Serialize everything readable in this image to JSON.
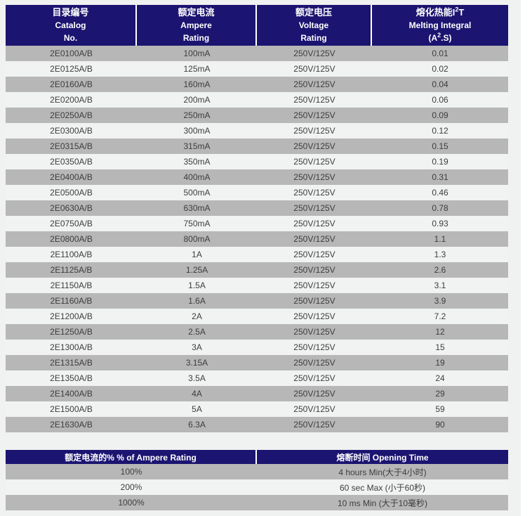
{
  "colors": {
    "header_bg": "#1b1470",
    "row_gray": "#b7b7b7",
    "row_light": "#f1f2f2",
    "text": "#3d3d3d",
    "panel_background": "#f0f1f1",
    "header_text": "#ffffff"
  },
  "table1": {
    "header": {
      "catalog": {
        "zh": "目录编号",
        "en1": "Catalog",
        "en2": "No."
      },
      "ampere": {
        "zh": "额定电流",
        "en1": "Ampere",
        "en2": "Rating"
      },
      "voltage": {
        "zh": "额定电压",
        "en1": "Voltage",
        "en2": "Rating"
      },
      "melting": {
        "zh_pre": "熔化热能I",
        "zh_sup": "2",
        "zh_post": "T",
        "en": "Melting Integral",
        "unit_pre": "(A",
        "unit_sup": "2",
        "unit_post": ".S)"
      }
    },
    "rows": [
      [
        "2E0100A/B",
        "100mA",
        "250V/125V",
        "0.01"
      ],
      [
        "2E0125A/B",
        "125mA",
        "250V/125V",
        "0.02"
      ],
      [
        "2E0160A/B",
        "160mA",
        "250V/125V",
        "0.04"
      ],
      [
        "2E0200A/B",
        "200mA",
        "250V/125V",
        "0.06"
      ],
      [
        "2E0250A/B",
        "250mA",
        "250V/125V",
        "0.09"
      ],
      [
        "2E0300A/B",
        "300mA",
        "250V/125V",
        "0.12"
      ],
      [
        "2E0315A/B",
        "315mA",
        "250V/125V",
        "0.15"
      ],
      [
        "2E0350A/B",
        "350mA",
        "250V/125V",
        "0.19"
      ],
      [
        "2E0400A/B",
        "400mA",
        "250V/125V",
        "0.31"
      ],
      [
        "2E0500A/B",
        "500mA",
        "250V/125V",
        "0.46"
      ],
      [
        "2E0630A/B",
        "630mA",
        "250V/125V",
        "0.78"
      ],
      [
        "2E0750A/B",
        "750mA",
        "250V/125V",
        "0.93"
      ],
      [
        "2E0800A/B",
        "800mA",
        "250V/125V",
        "1.1"
      ],
      [
        "2E1100A/B",
        "1A",
        "250V/125V",
        "1.3"
      ],
      [
        "2E1125A/B",
        "1.25A",
        "250V/125V",
        "2.6"
      ],
      [
        "2E1150A/B",
        "1.5A",
        "250V/125V",
        "3.1"
      ],
      [
        "2E1160A/B",
        "1.6A",
        "250V/125V",
        "3.9"
      ],
      [
        "2E1200A/B",
        "2A",
        "250V/125V",
        "7.2"
      ],
      [
        "2E1250A/B",
        "2.5A",
        "250V/125V",
        "12"
      ],
      [
        "2E1300A/B",
        "3A",
        "250V/125V",
        "15"
      ],
      [
        "2E1315A/B",
        "3.15A",
        "250V/125V",
        "19"
      ],
      [
        "2E1350A/B",
        "3.5A",
        "250V/125V",
        "24"
      ],
      [
        "2E1400A/B",
        "4A",
        "250V/125V",
        "29"
      ],
      [
        "2E1500A/B",
        "5A",
        "250V/125V",
        "59"
      ],
      [
        "2E1630A/B",
        "6.3A",
        "250V/125V",
        "90"
      ]
    ]
  },
  "table2": {
    "header": {
      "col1": "额定电流的% % of Ampere Rating",
      "col2": "熔断时间 Opening Time"
    },
    "rows": [
      [
        "100%",
        "4 hours Min(大于4小时)"
      ],
      [
        "200%",
        "60 sec Max (小于60秒)"
      ],
      [
        "1000%",
        "10 ms Min (大于10毫秒)"
      ]
    ]
  }
}
